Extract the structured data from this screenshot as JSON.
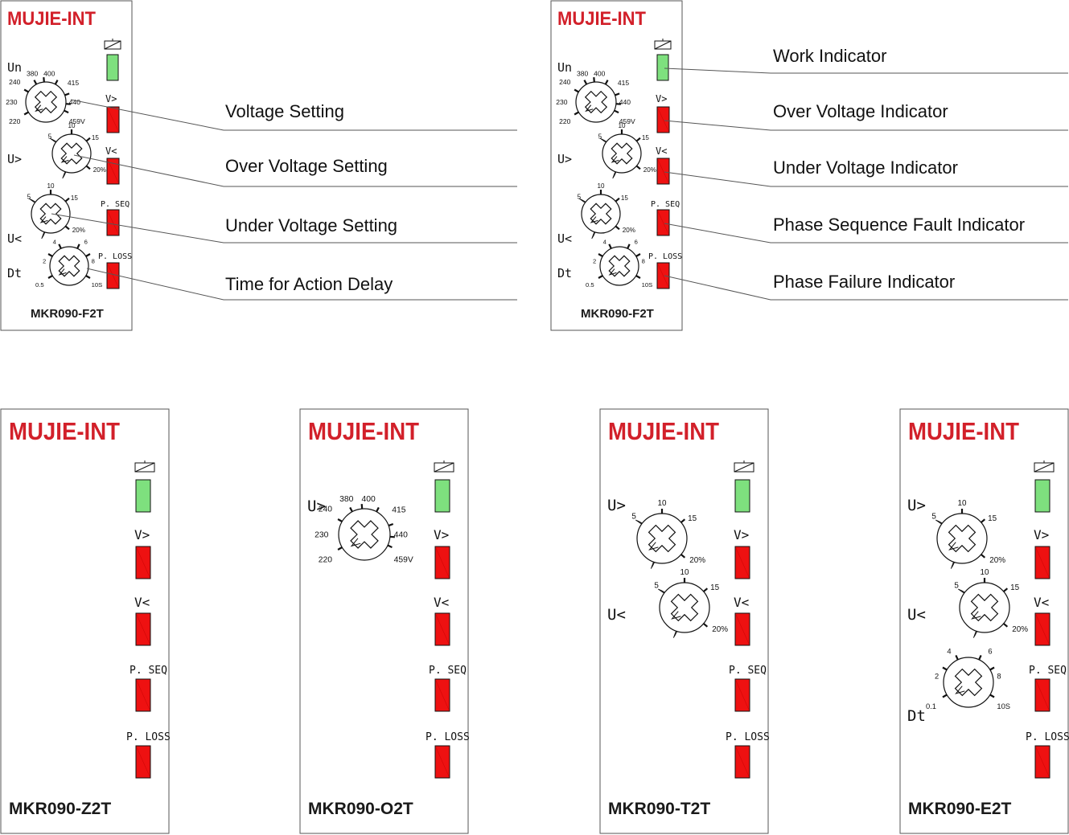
{
  "brand": "MUJIE-INT",
  "colors": {
    "brand_red": "#d2202a",
    "led_green": "#7ee07e",
    "led_red": "#ee1111"
  },
  "labels": {
    "un": "Un",
    "u_over": "U>",
    "u_under": "U<",
    "dt": "Dt",
    "v_over": "V>",
    "v_under": "V<",
    "p_seq": "P. SEQ",
    "p_loss": "P. LOSS"
  },
  "dial_ticks": {
    "voltage": [
      "240",
      "380",
      "400",
      "415",
      "230",
      "440",
      "220",
      "459V"
    ],
    "percent": [
      "5",
      "10",
      "15",
      "20%"
    ],
    "delay_f2t": [
      "2",
      "4",
      "6",
      "8",
      "0.5",
      "10S"
    ],
    "delay_e2t": [
      "2",
      "4",
      "6",
      "8",
      "0.1",
      "10S"
    ]
  },
  "icons": [
    "relay-coil-icon",
    "dial-knob-icon",
    "led-indicator"
  ],
  "devices": [
    {
      "model": "MKR090-F2T",
      "role": "setting-callouts"
    },
    {
      "model": "MKR090-F2T",
      "role": "indicator-callouts"
    },
    {
      "model": "MKR090-Z2T"
    },
    {
      "model": "MKR090-O2T"
    },
    {
      "model": "MKR090-T2T"
    },
    {
      "model": "MKR090-E2T"
    }
  ],
  "callouts_settings": [
    "Voltage Setting",
    "Over Voltage Setting",
    "Under Voltage Setting",
    "Time for Action Delay"
  ],
  "callouts_indicators": [
    "Work Indicator",
    "Over Voltage Indicator",
    "Under Voltage Indicator",
    "Phase Sequence Fault Indicator",
    "Phase Failure Indicator"
  ]
}
